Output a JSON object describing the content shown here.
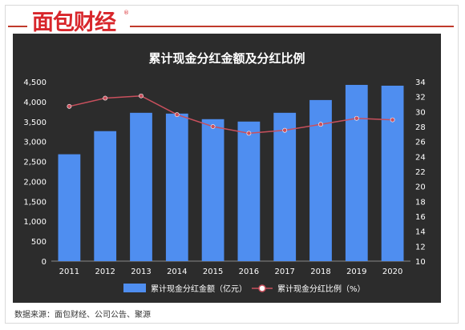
{
  "brand": {
    "logo_text": "面包财经",
    "registered_mark": "®"
  },
  "source_note": "数据来源：面包财经、公司公告、聚源",
  "colors": {
    "panel_bg": "#2c2c2c",
    "bar": "#4f8ef0",
    "line": "#c9505d",
    "text": "#ffffff",
    "brand_red": "#d8262b"
  },
  "chart_data": {
    "type": "bar",
    "title": "累计现金分红金额及分红比例",
    "categories": [
      "2011",
      "2012",
      "2013",
      "2014",
      "2015",
      "2016",
      "2017",
      "2018",
      "2019",
      "2020"
    ],
    "y_left": {
      "ylim": [
        0,
        4500
      ],
      "ticks": [
        "0",
        "500",
        "1,000",
        "1,500",
        "2,000",
        "2,500",
        "3,000",
        "3,500",
        "4,000",
        "4,500"
      ]
    },
    "y_right": {
      "ylim": [
        10,
        34
      ],
      "ticks": [
        "10",
        "12",
        "14",
        "16",
        "18",
        "20",
        "22",
        "24",
        "26",
        "28",
        "30",
        "32",
        "34"
      ]
    },
    "series": [
      {
        "name": "累计现金分红金额（亿元）",
        "type": "bar",
        "axis": "left",
        "values": [
          2680,
          3260,
          3720,
          3700,
          3560,
          3500,
          3720,
          4040,
          4420,
          4400
        ]
      },
      {
        "name": "累计现金分红比例（%）",
        "type": "line",
        "axis": "right",
        "values": [
          30.7,
          31.8,
          32.1,
          29.6,
          28.0,
          27.1,
          27.5,
          28.3,
          29.1,
          28.9
        ]
      }
    ],
    "legend_position": "bottom",
    "grid": false
  }
}
